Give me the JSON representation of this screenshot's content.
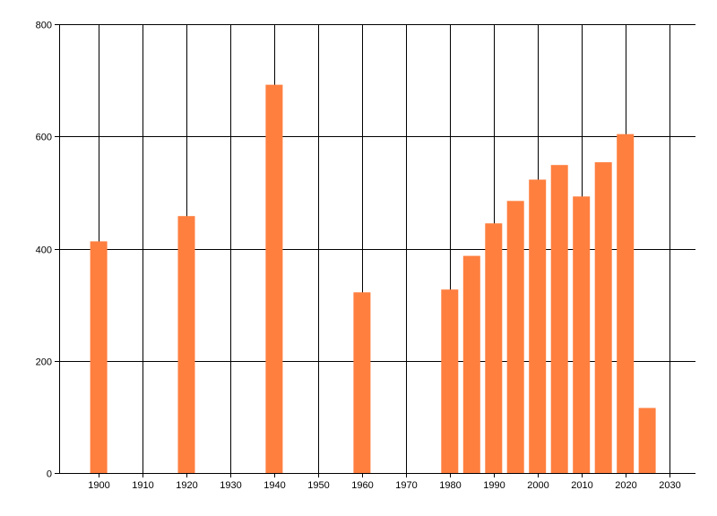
{
  "chart_data": {
    "type": "bar",
    "title": "",
    "xlabel": "",
    "ylabel": "",
    "x": [
      1900,
      1920,
      1940,
      1960,
      1980,
      1985,
      1990,
      1995,
      2000,
      2005,
      2010,
      2015,
      2020,
      2025
    ],
    "values": [
      413,
      458,
      692,
      322,
      327,
      387,
      445,
      485,
      523,
      549,
      493,
      554,
      604,
      116
    ],
    "xlim": [
      1891,
      2036
    ],
    "ylim": [
      0,
      800
    ],
    "xticks": [
      1900,
      1910,
      1920,
      1930,
      1940,
      1950,
      1960,
      1970,
      1980,
      1990,
      2000,
      2010,
      2020,
      2030
    ],
    "yticks": [
      0,
      200,
      400,
      600,
      800
    ],
    "grid": true,
    "legend": "none",
    "colors": {
      "bar": "#FF7F3F",
      "grid": "#000000",
      "background": "#ffffff"
    }
  }
}
